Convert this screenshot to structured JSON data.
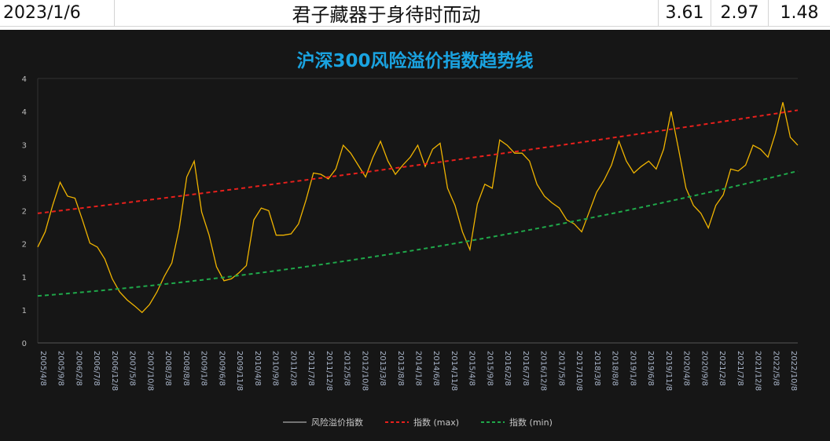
{
  "header_row": {
    "date": "2023/1/6",
    "motto": "君子藏器于身待时而动",
    "v1": "3.61",
    "v2": "2.97",
    "v3": "1.48"
  },
  "chart_data": {
    "type": "line",
    "title": "沪深300风险溢价指数趋势线",
    "ylim": [
      0,
      4
    ],
    "y_ticks": [
      {
        "v": 4,
        "label": "4"
      },
      {
        "v": 3.5,
        "label": "4"
      },
      {
        "v": 3,
        "label": "3"
      },
      {
        "v": 2.5,
        "label": "3"
      },
      {
        "v": 2,
        "label": "2"
      },
      {
        "v": 1.5,
        "label": "2"
      },
      {
        "v": 1,
        "label": "1"
      },
      {
        "v": 0.5,
        "label": "1"
      },
      {
        "v": 0,
        "label": "0"
      }
    ],
    "x_labels": [
      "2005/4/8",
      "2005/9/8",
      "2006/2/8",
      "2006/7/8",
      "2006/12/8",
      "2007/5/8",
      "2007/10/8",
      "2008/3/8",
      "2008/8/8",
      "2009/1/8",
      "2009/6/8",
      "2009/11/8",
      "2010/4/8",
      "2010/9/8",
      "2011/2/8",
      "2011/7/8",
      "2011/12/8",
      "2012/5/8",
      "2012/10/8",
      "2013/3/8",
      "2013/8/8",
      "2014/1/8",
      "2014/6/8",
      "2014/11/8",
      "2015/4/8",
      "2015/9/8",
      "2016/2/8",
      "2016/7/8",
      "2016/12/8",
      "2017/5/8",
      "2017/10/8",
      "2018/3/8",
      "2018/8/8",
      "2019/1/8",
      "2019/6/8",
      "2019/11/8",
      "2020/4/8",
      "2020/9/8",
      "2021/2/8",
      "2021/7/8",
      "2021/12/8",
      "2022/5/8",
      "2022/10/8"
    ],
    "series": [
      {
        "name": "风险溢价指数",
        "color": "#f0b400",
        "style": "solid",
        "values": [
          1.45,
          1.68,
          2.08,
          2.43,
          2.22,
          2.19,
          1.86,
          1.51,
          1.45,
          1.27,
          0.97,
          0.77,
          0.65,
          0.56,
          0.46,
          0.58,
          0.77,
          1.01,
          1.21,
          1.74,
          2.51,
          2.75,
          1.98,
          1.63,
          1.15,
          0.94,
          0.97,
          1.06,
          1.17,
          1.86,
          2.04,
          2.0,
          1.63,
          1.63,
          1.65,
          1.8,
          2.16,
          2.57,
          2.55,
          2.48,
          2.63,
          2.99,
          2.87,
          2.69,
          2.51,
          2.81,
          3.05,
          2.75,
          2.55,
          2.69,
          2.81,
          2.99,
          2.67,
          2.93,
          3.02,
          2.34,
          2.08,
          1.68,
          1.41,
          2.1,
          2.4,
          2.34,
          3.07,
          2.99,
          2.87,
          2.87,
          2.75,
          2.4,
          2.22,
          2.12,
          2.04,
          1.86,
          1.8,
          1.68,
          1.98,
          2.28,
          2.46,
          2.69,
          3.05,
          2.75,
          2.57,
          2.67,
          2.75,
          2.63,
          2.93,
          3.5,
          2.93,
          2.34,
          2.08,
          1.96,
          1.74,
          2.08,
          2.24,
          2.63,
          2.6,
          2.69,
          2.99,
          2.93,
          2.81,
          3.17,
          3.64,
          3.11,
          2.99
        ]
      },
      {
        "name": "指数 (max)",
        "color": "#e8201c",
        "style": "dashed",
        "trend": [
          1.96,
          2.69,
          3.52
        ]
      },
      {
        "name": "指数 (min)",
        "color": "#1fa84a",
        "style": "dashed",
        "trend": [
          0.71,
          1.41,
          2.6
        ]
      }
    ],
    "legend": "bottom"
  }
}
